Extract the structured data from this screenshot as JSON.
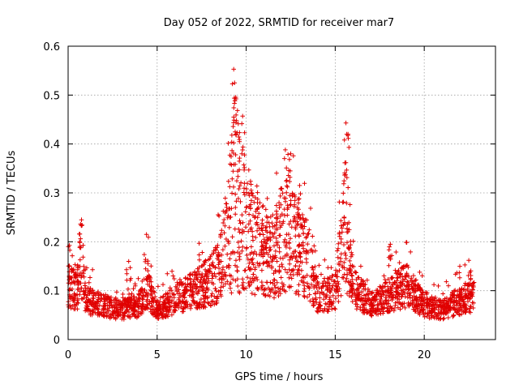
{
  "chart_data": {
    "type": "scatter",
    "title": "Day 052 of 2022, SRMTID for receiver mar7",
    "xlabel": "GPS time / hours",
    "ylabel": "SRMTID / TECUs",
    "xlim": [
      0,
      24
    ],
    "ylim": [
      0,
      0.6
    ],
    "x_ticks": [
      "0",
      "5",
      "10",
      "15",
      "20"
    ],
    "x_tick_values": [
      0,
      5,
      10,
      15,
      20
    ],
    "y_ticks": [
      "0",
      "0.1",
      "0.2",
      "0.3",
      "0.4",
      "0.5",
      "0.6"
    ],
    "y_tick_values": [
      0,
      0.1,
      0.2,
      0.3,
      0.4,
      0.5,
      0.6
    ],
    "grid": true,
    "marker": "+",
    "marker_color": "#e00000",
    "x_range_of_data": [
      0,
      22.8
    ],
    "trend": [
      {
        "x": 0.0,
        "y": 0.11
      },
      {
        "x": 0.5,
        "y": 0.1
      },
      {
        "x": 0.75,
        "y": 0.17
      },
      {
        "x": 1.0,
        "y": 0.08
      },
      {
        "x": 2.0,
        "y": 0.07
      },
      {
        "x": 3.0,
        "y": 0.06
      },
      {
        "x": 4.0,
        "y": 0.07
      },
      {
        "x": 4.4,
        "y": 0.11
      },
      {
        "x": 5.0,
        "y": 0.06
      },
      {
        "x": 6.0,
        "y": 0.08
      },
      {
        "x": 7.0,
        "y": 0.1
      },
      {
        "x": 8.0,
        "y": 0.12
      },
      {
        "x": 8.5,
        "y": 0.14
      },
      {
        "x": 9.0,
        "y": 0.22
      },
      {
        "x": 9.4,
        "y": 0.3
      },
      {
        "x": 9.8,
        "y": 0.24
      },
      {
        "x": 10.5,
        "y": 0.19
      },
      {
        "x": 11.5,
        "y": 0.17
      },
      {
        "x": 12.3,
        "y": 0.22
      },
      {
        "x": 13.0,
        "y": 0.18
      },
      {
        "x": 13.5,
        "y": 0.16
      },
      {
        "x": 14.0,
        "y": 0.09
      },
      {
        "x": 14.5,
        "y": 0.09
      },
      {
        "x": 15.0,
        "y": 0.1
      },
      {
        "x": 15.5,
        "y": 0.22
      },
      {
        "x": 16.0,
        "y": 0.11
      },
      {
        "x": 17.0,
        "y": 0.07
      },
      {
        "x": 18.0,
        "y": 0.09
      },
      {
        "x": 19.0,
        "y": 0.11
      },
      {
        "x": 20.0,
        "y": 0.07
      },
      {
        "x": 21.0,
        "y": 0.06
      },
      {
        "x": 22.0,
        "y": 0.08
      },
      {
        "x": 22.8,
        "y": 0.09
      }
    ],
    "spikes": [
      {
        "x": 0.75,
        "y": 0.245
      },
      {
        "x": 4.4,
        "y": 0.215
      },
      {
        "x": 9.3,
        "y": 0.553
      },
      {
        "x": 9.35,
        "y": 0.525
      },
      {
        "x": 9.8,
        "y": 0.457
      },
      {
        "x": 9.3,
        "y": 0.455
      },
      {
        "x": 12.2,
        "y": 0.388
      },
      {
        "x": 12.5,
        "y": 0.38
      },
      {
        "x": 15.6,
        "y": 0.443
      },
      {
        "x": 15.65,
        "y": 0.42
      },
      {
        "x": 13.0,
        "y": 0.315
      },
      {
        "x": 18.1,
        "y": 0.195
      },
      {
        "x": 22.5,
        "y": 0.162
      },
      {
        "x": 3.4,
        "y": 0.16
      }
    ]
  }
}
